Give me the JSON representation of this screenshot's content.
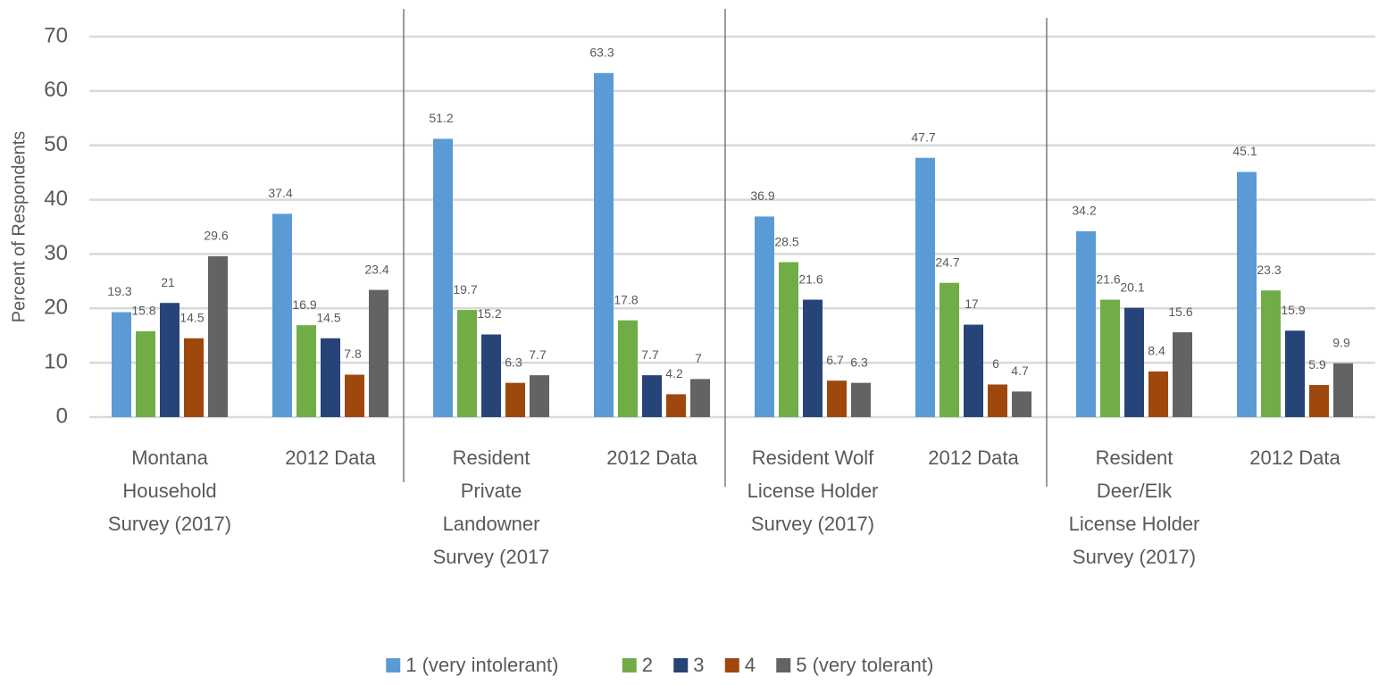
{
  "chart_data": {
    "type": "bar",
    "y_axis_label": "Percent of Respondents",
    "categories": [
      "Montana Household Survey (2017)",
      "2012 Data",
      "Resident Private Landowner Survey (2017",
      "2012 Data",
      "Resident Wolf License Holder Survey (2017)",
      "2012 Data",
      "Resident Deer/Elk License Holder Survey (2017)",
      "2012 Data"
    ],
    "series": [
      {
        "name": "1 (very intolerant)",
        "color": "#5b9bd5",
        "values": [
          19.3,
          37.4,
          51.2,
          63.3,
          36.9,
          47.7,
          34.2,
          45.1
        ]
      },
      {
        "name": "2",
        "color": "#70ad47",
        "values": [
          15.8,
          16.9,
          19.7,
          17.8,
          28.5,
          24.7,
          21.6,
          23.3
        ]
      },
      {
        "name": "3",
        "color": "#264478",
        "values": [
          21,
          14.5,
          15.2,
          7.7,
          21.6,
          17,
          20.1,
          15.9
        ]
      },
      {
        "name": "4",
        "color": "#9e480e",
        "values": [
          14.5,
          7.8,
          6.3,
          4.2,
          6.7,
          6,
          8.4,
          5.9
        ]
      },
      {
        "name": "5 (very tolerant)",
        "color": "#636363",
        "values": [
          29.6,
          23.4,
          7.7,
          7,
          6.3,
          4.7,
          15.6,
          9.9
        ]
      }
    ],
    "ylim": [
      0,
      70
    ],
    "yticks": [
      0,
      10,
      20,
      30,
      40,
      50,
      60,
      70
    ],
    "grid": true,
    "legend": "bottom"
  }
}
